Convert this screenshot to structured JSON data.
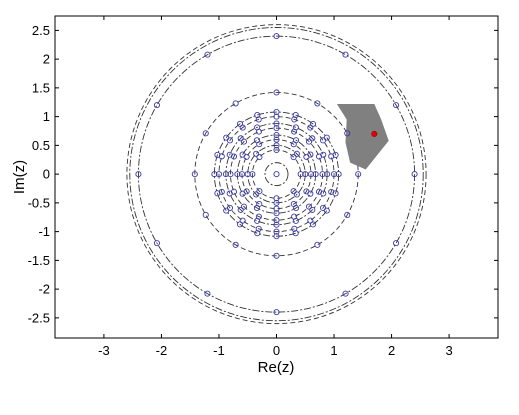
{
  "chart_data": {
    "type": "scatter",
    "title": "",
    "xlabel": "Re(z)",
    "ylabel": "Im(z)",
    "xlim": [
      -3.85,
      3.85
    ],
    "ylim": [
      -2.85,
      2.75
    ],
    "xticks": [
      -3,
      -2,
      -1,
      0,
      1,
      2,
      3
    ],
    "xtick_labels": [
      "-3",
      "-2",
      "-1",
      "0",
      "1",
      "2",
      "3"
    ],
    "yticks": [
      2.5,
      2,
      1.5,
      1,
      0.5,
      0,
      -0.5,
      -1,
      -1.5,
      -2,
      -2.5
    ],
    "ytick_labels": [
      "2.5",
      "2",
      "1.5",
      "1",
      "0.5",
      "0",
      "-0.5",
      "-1",
      "-1.5",
      "-2",
      "-2.5"
    ],
    "grid": false,
    "legend": "none",
    "colors": {
      "marker": "#3a3aa8",
      "curve": "#333333",
      "region": "#808080",
      "point": "#dd0000",
      "axes": "#000000"
    },
    "circles": [
      {
        "radius": 0.2,
        "markers": 1
      },
      {
        "radius": 0.42,
        "markers": 8
      },
      {
        "radius": 0.5,
        "markers": 8
      },
      {
        "radius": 0.6,
        "markers": 12
      },
      {
        "radius": 0.68,
        "markers": 12
      },
      {
        "radius": 0.8,
        "markers": 16
      },
      {
        "radius": 0.88,
        "markers": 16
      },
      {
        "radius": 1.0,
        "markers": 20
      },
      {
        "radius": 1.08,
        "markers": 20
      },
      {
        "radius": 1.42,
        "markers": 12
      },
      {
        "radius": 2.4,
        "markers": 12
      },
      {
        "radius": 2.6,
        "markers": 0
      },
      {
        "radius": 2.55,
        "markers": 0
      }
    ],
    "shaded_region": [
      [
        1.05,
        1.22
      ],
      [
        1.7,
        1.22
      ],
      [
        1.82,
        0.95
      ],
      [
        1.95,
        0.58
      ],
      [
        1.55,
        0.08
      ],
      [
        1.28,
        0.2
      ],
      [
        1.2,
        0.55
      ],
      [
        1.22,
        0.95
      ]
    ],
    "highlight_point": {
      "x": 1.7,
      "y": 0.7
    }
  }
}
